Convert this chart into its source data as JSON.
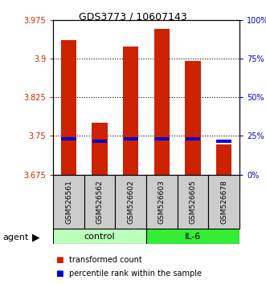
{
  "title": "GDS3773 / 10607143",
  "samples": [
    "GSM526561",
    "GSM526562",
    "GSM526602",
    "GSM526603",
    "GSM526605",
    "GSM526678"
  ],
  "bar_tops": [
    3.936,
    3.776,
    3.924,
    3.957,
    3.896,
    3.734
  ],
  "bar_bottoms": [
    3.675,
    3.675,
    3.675,
    3.675,
    3.675,
    3.675
  ],
  "percentile_values": [
    3.745,
    3.74,
    3.745,
    3.745,
    3.745,
    3.74
  ],
  "ylim": [
    3.675,
    3.975
  ],
  "yticks_left": [
    3.675,
    3.75,
    3.825,
    3.9,
    3.975
  ],
  "yticks_right": [
    0,
    25,
    50,
    75,
    100
  ],
  "bar_color": "#cc2200",
  "percentile_color": "#0000cc",
  "ctrl_color": "#bbffbb",
  "il6_color": "#33ee33",
  "groups": [
    {
      "label": "control",
      "n": 3
    },
    {
      "label": "IL-6",
      "n": 3
    }
  ],
  "agent_label": "agent",
  "legend_items": [
    {
      "label": "transformed count",
      "color": "#cc2200"
    },
    {
      "label": "percentile rank within the sample",
      "color": "#0000cc"
    }
  ],
  "background_color": "#ffffff",
  "sample_box_color": "#cccccc",
  "title_fontsize": 9,
  "tick_fontsize": 7,
  "legend_fontsize": 7,
  "group_fontsize": 8
}
